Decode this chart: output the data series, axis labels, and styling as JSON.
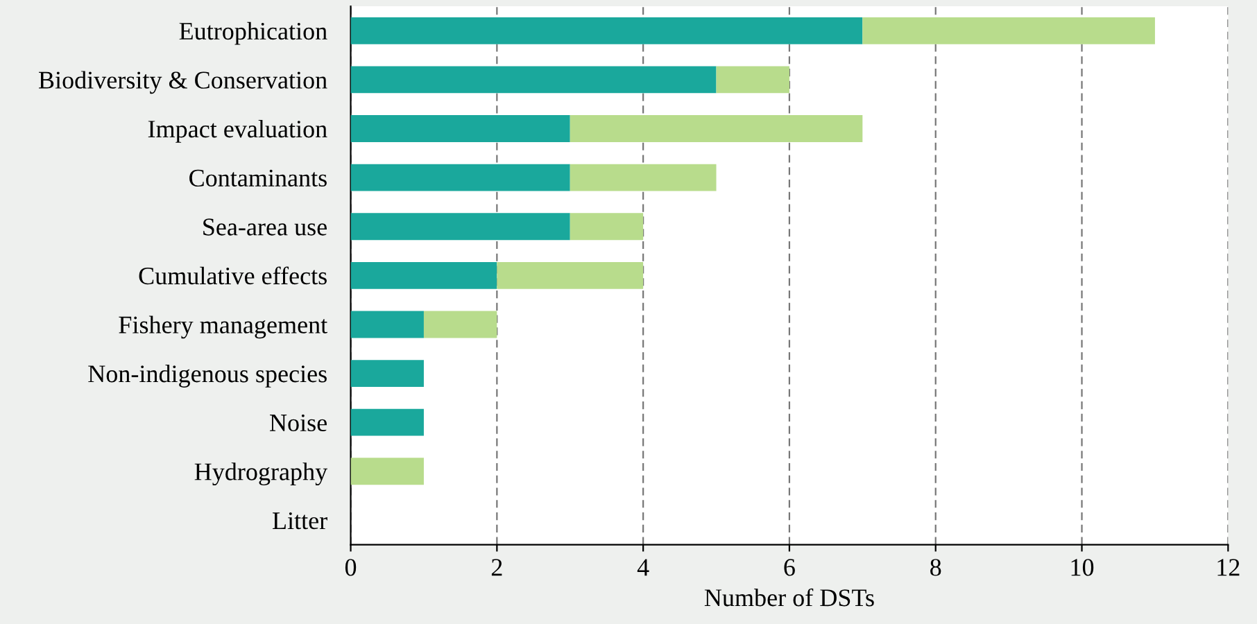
{
  "chart_data": {
    "type": "bar",
    "orientation": "horizontal",
    "stacked": true,
    "xlabel": "Number of DSTs",
    "categories": [
      "Eutrophication",
      "Biodiversity & Conservation",
      "Impact evaluation",
      "Contaminants",
      "Sea-area use",
      "Cumulative effects",
      "Fishery management",
      "Non-indigenous species",
      "Noise",
      "Hydrography",
      "Litter"
    ],
    "series": [
      {
        "color": "#1aa89c",
        "values": [
          7,
          5,
          3,
          3,
          3,
          2,
          1,
          1,
          1,
          0,
          0
        ]
      },
      {
        "color": "#b8dc8c",
        "values": [
          4,
          1,
          4,
          2,
          1,
          2,
          1,
          0,
          0,
          1,
          0
        ]
      }
    ],
    "xlim": [
      0,
      12
    ],
    "xticks": [
      0,
      2,
      4,
      6,
      8,
      10,
      12
    ],
    "grid": "x",
    "legend": false
  }
}
